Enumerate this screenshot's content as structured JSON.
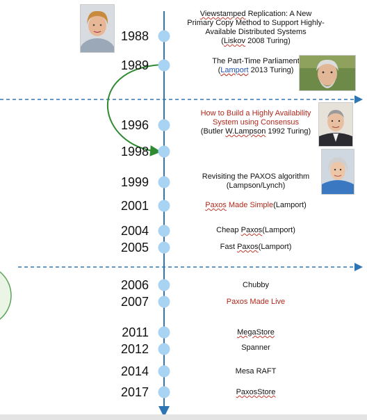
{
  "timeline": [
    {
      "year": "1988",
      "lines": [
        [
          {
            "t": "Viewstamped",
            "s": "ul"
          },
          {
            "t": " Replication: A New"
          }
        ],
        [
          {
            "t": "Primary Copy Method to Support Highly-"
          }
        ],
        [
          {
            "t": "Available Distributed Systems"
          }
        ],
        [
          {
            "t": "("
          },
          {
            "t": "Liskov",
            "s": "ul"
          },
          {
            "t": " 2008 Turing)"
          }
        ]
      ]
    },
    {
      "year": "1989",
      "lines": [
        [
          {
            "t": "The Part-Time Parliament"
          }
        ],
        [
          {
            "t": "("
          },
          {
            "t": "Lamport",
            "s": "link"
          },
          {
            "t": " 2013 Turing)"
          }
        ]
      ]
    },
    {
      "year": "1996",
      "lines": [
        [
          {
            "t": "How to Build a Highly Availability",
            "s": "red"
          }
        ],
        [
          {
            "t": "System using Consensus",
            "s": "red"
          }
        ],
        [
          {
            "t": "(Butler "
          },
          {
            "t": "W.Lampson",
            "s": "ul"
          },
          {
            "t": " 1992 Turing)"
          }
        ]
      ]
    },
    {
      "year": "1998",
      "lines": []
    },
    {
      "year": "1999",
      "lines": [
        [
          {
            "t": "Revisiting the PAXOS algorithm"
          }
        ],
        [
          {
            "t": "(Lampson/Lynch)"
          }
        ]
      ]
    },
    {
      "year": "2001",
      "lines": [
        [
          {
            "t": "Paxos",
            "s": "red ul"
          },
          {
            "t": " Made Simple",
            "s": "red"
          },
          {
            "t": "(Lamport)"
          }
        ]
      ]
    },
    {
      "year": "2004",
      "lines": [
        [
          {
            "t": "Cheap "
          },
          {
            "t": "Paxos",
            "s": "ul"
          },
          {
            "t": "(Lamport)"
          }
        ]
      ]
    },
    {
      "year": "2005",
      "lines": [
        [
          {
            "t": "Fast "
          },
          {
            "t": "Paxos",
            "s": "ul"
          },
          {
            "t": "(Lamport)"
          }
        ]
      ]
    },
    {
      "year": "2006",
      "lines": [
        [
          {
            "t": "Chubby"
          }
        ]
      ]
    },
    {
      "year": "2007",
      "lines": [
        [
          {
            "t": "Paxos Made Live",
            "s": "red"
          }
        ]
      ]
    },
    {
      "year": "2011",
      "lines": [
        [
          {
            "t": "MegaStore",
            "s": "ul"
          }
        ]
      ]
    },
    {
      "year": "2012",
      "lines": [
        [
          {
            "t": "Spanner"
          }
        ]
      ]
    },
    {
      "year": "2014",
      "lines": [
        [
          {
            "t": "Mesa RAFT"
          }
        ]
      ]
    },
    {
      "year": "2017",
      "lines": [
        [
          {
            "t": "PaxosStore",
            "s": "ul"
          }
        ]
      ]
    }
  ],
  "colors": {
    "axis": "#2e75b6",
    "node": "#a9d3f2",
    "divider": "#2e75b6",
    "arc": "#2f8b32",
    "red_text": "#b0281c",
    "link_text": "#1f4fb3"
  }
}
